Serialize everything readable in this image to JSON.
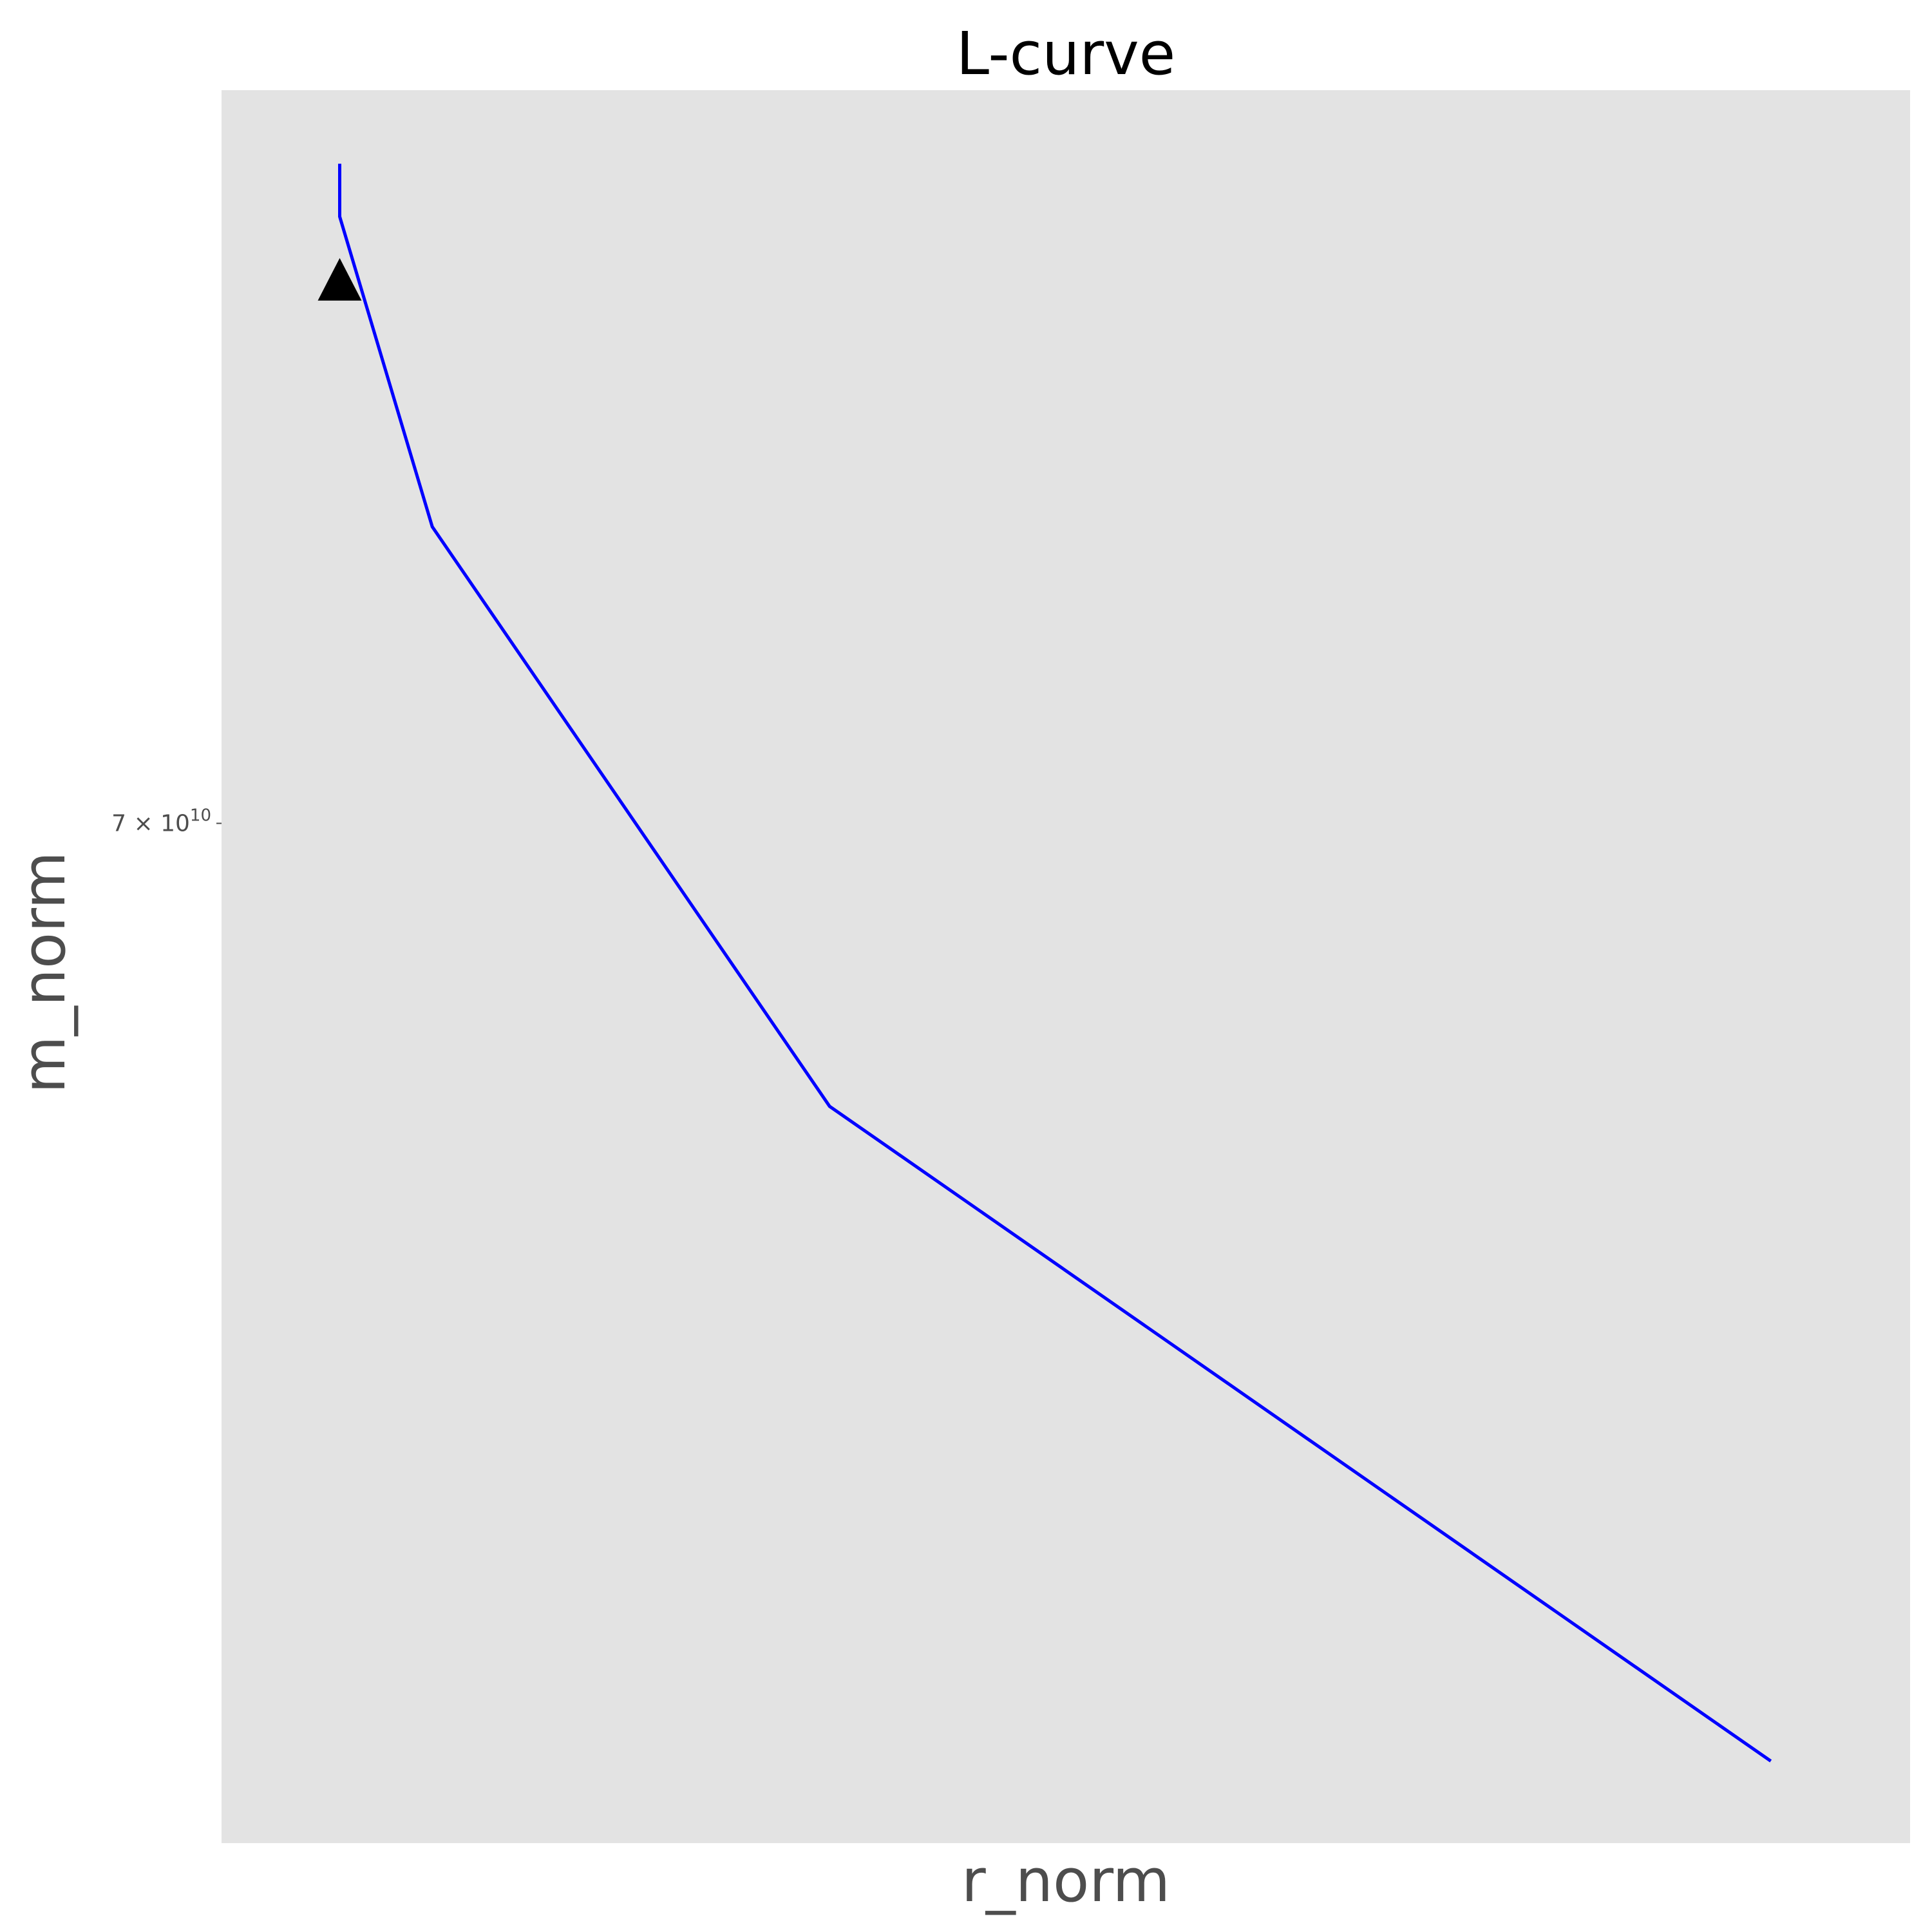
{
  "chart_data": {
    "type": "line",
    "title": "L-curve",
    "xlabel": "r_norm",
    "ylabel": "m_norm",
    "x_scale": "log",
    "y_scale": "log",
    "grid": false,
    "colors": {
      "panel_background": "#e3e3e3",
      "line": "#0000ff",
      "marker": "#000000",
      "axis_text": "#4d4d4d"
    },
    "y_ticks": [
      {
        "value": 70000000000,
        "label_base": "7 × 10",
        "label_exp": "10"
      }
    ],
    "series": [
      {
        "x": [
          0.95,
          0.95,
          1.12,
          2.27,
          12.1
        ],
        "y": [
          83800000000,
          82600000000,
          75900000000,
          64800000000,
          54200000000
        ]
      }
    ],
    "highlight_point": {
      "shape": "triangle",
      "x": 0.95,
      "y": 81200000000
    },
    "xlim": [
      0.77,
      15.5
    ],
    "ylim": [
      53000000000,
      85500000000
    ]
  }
}
